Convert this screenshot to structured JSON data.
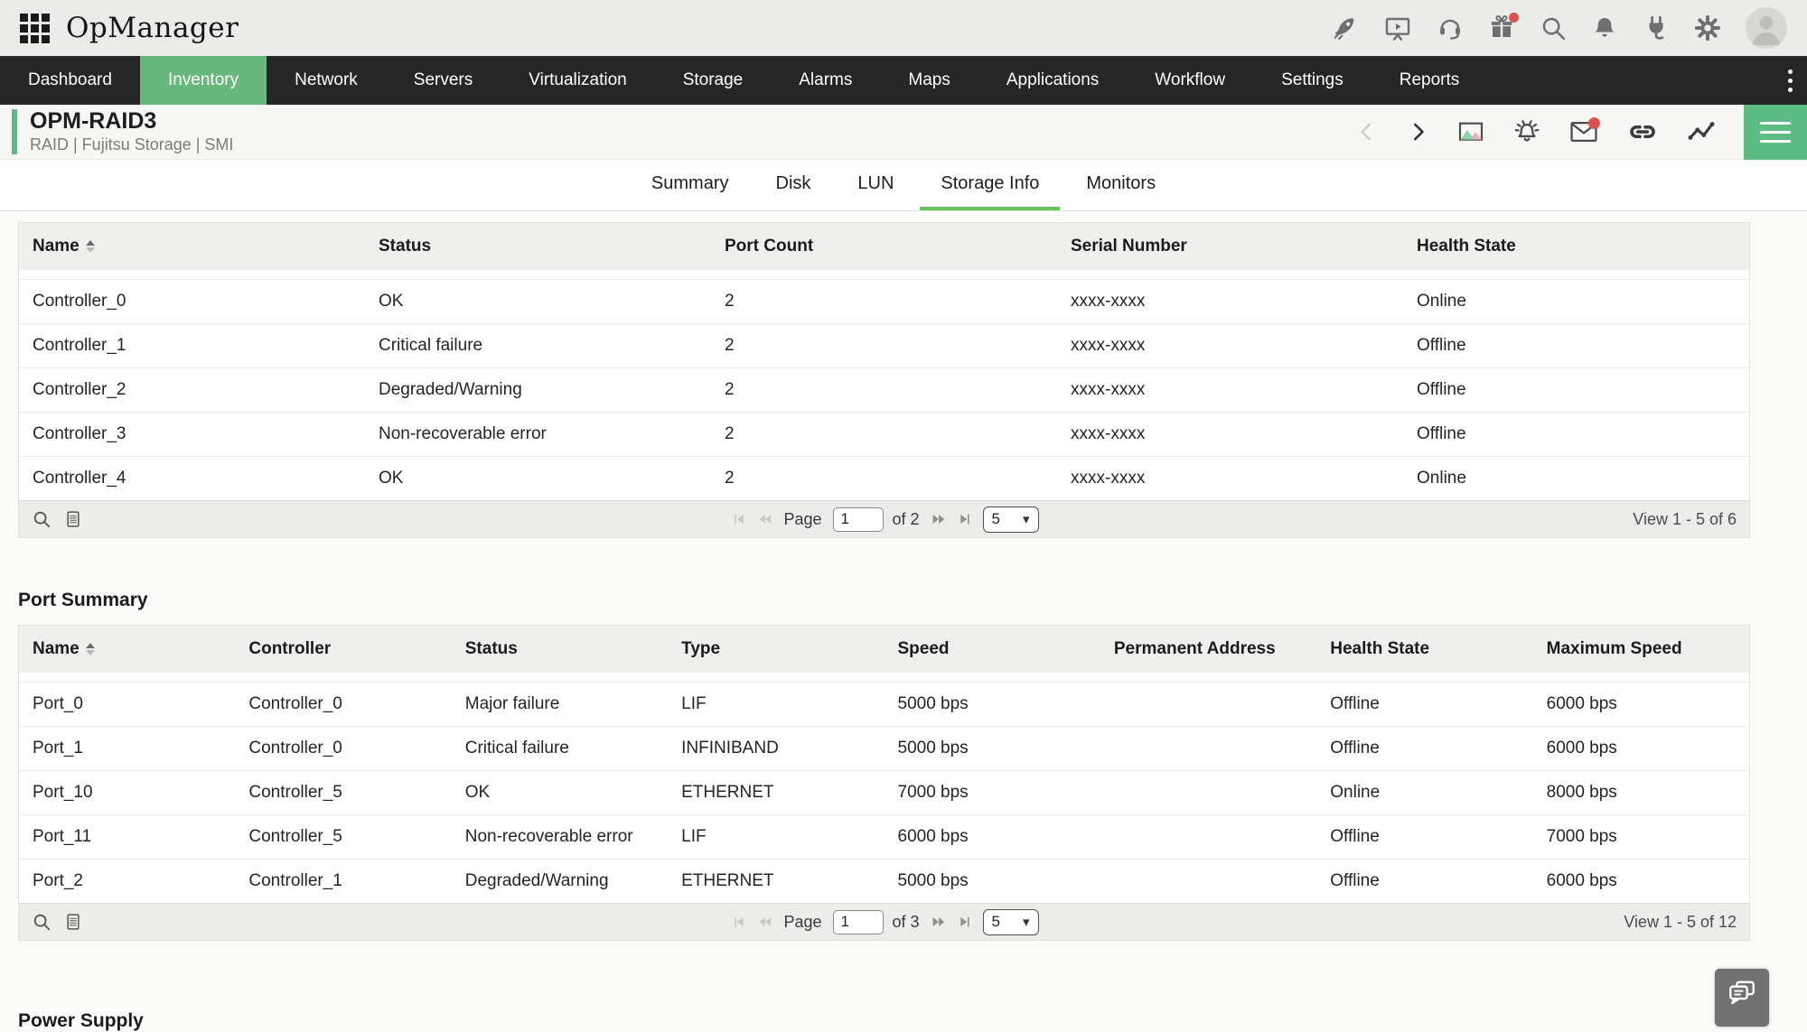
{
  "colors": {
    "accent_green": "#67b77f",
    "tab_underline_green": "#65c15e",
    "nav_bg": "#262626",
    "topbar_bg": "#ebebe9",
    "badge_red": "#d9534f"
  },
  "topbar": {
    "logo_text": "OpManager",
    "icons": [
      "launcher-grid",
      "getting-started-rocket",
      "demo-presentation",
      "support-headset",
      "whats-new-gift",
      "search",
      "notifications-bell",
      "add-on-plug",
      "settings-gear",
      "user-avatar"
    ]
  },
  "nav": {
    "active_label": "Inventory",
    "items": [
      {
        "label": "Dashboard"
      },
      {
        "label": "Inventory"
      },
      {
        "label": "Network"
      },
      {
        "label": "Servers"
      },
      {
        "label": "Virtualization"
      },
      {
        "label": "Storage"
      },
      {
        "label": "Alarms"
      },
      {
        "label": "Maps"
      },
      {
        "label": "Applications"
      },
      {
        "label": "Workflow"
      },
      {
        "label": "Settings"
      },
      {
        "label": "Reports"
      }
    ]
  },
  "device": {
    "title": "OPM-RAID3",
    "subtitle": "RAID | Fujitsu Storage  | SMI",
    "actions": [
      "previous-device",
      "next-device",
      "snapshot-image",
      "alarm-bell",
      "email-envelope",
      "link-chain",
      "performance-graph",
      "menu-hamburger"
    ]
  },
  "tabs": {
    "active": "Storage Info",
    "items": [
      {
        "label": "Summary"
      },
      {
        "label": "Disk"
      },
      {
        "label": "LUN"
      },
      {
        "label": "Storage Info"
      },
      {
        "label": "Monitors"
      }
    ]
  },
  "controller_table": {
    "columns": [
      "Name",
      "Status",
      "Port Count",
      "Serial Number",
      "Health State"
    ],
    "rows": [
      {
        "name": "Controller_0",
        "status": "OK",
        "port_count": "2",
        "serial": "xxxx-xxxx",
        "health": "Online"
      },
      {
        "name": "Controller_1",
        "status": "Critical failure",
        "port_count": "2",
        "serial": "xxxx-xxxx",
        "health": "Offline"
      },
      {
        "name": "Controller_2",
        "status": "Degraded/Warning",
        "port_count": "2",
        "serial": "xxxx-xxxx",
        "health": "Offline"
      },
      {
        "name": "Controller_3",
        "status": "Non-recoverable error",
        "port_count": "2",
        "serial": "xxxx-xxxx",
        "health": "Offline"
      },
      {
        "name": "Controller_4",
        "status": "OK",
        "port_count": "2",
        "serial": "xxxx-xxxx",
        "health": "Online"
      }
    ],
    "pager": {
      "page_label": "Page",
      "page": "1",
      "of": "of 2",
      "page_size": "5",
      "view": "View 1 - 5 of 6"
    }
  },
  "port_table": {
    "heading": "Port Summary",
    "columns": [
      "Name",
      "Controller",
      "Status",
      "Type",
      "Speed",
      "Permanent Address",
      "Health State",
      "Maximum Speed"
    ],
    "rows": [
      {
        "name": "Port_0",
        "controller": "Controller_0",
        "status": "Major failure",
        "type": "LIF",
        "speed": "5000 bps",
        "address": "",
        "health": "Offline",
        "max_speed": "6000 bps"
      },
      {
        "name": "Port_1",
        "controller": "Controller_0",
        "status": "Critical failure",
        "type": "INFINIBAND",
        "speed": "5000 bps",
        "address": "",
        "health": "Offline",
        "max_speed": "6000 bps"
      },
      {
        "name": "Port_10",
        "controller": "Controller_5",
        "status": "OK",
        "type": "ETHERNET",
        "speed": "7000 bps",
        "address": "",
        "health": "Online",
        "max_speed": "8000 bps"
      },
      {
        "name": "Port_11",
        "controller": "Controller_5",
        "status": "Non-recoverable error",
        "type": "LIF",
        "speed": "6000 bps",
        "address": "",
        "health": "Offline",
        "max_speed": "7000 bps"
      },
      {
        "name": "Port_2",
        "controller": "Controller_1",
        "status": "Degraded/Warning",
        "type": "ETHERNET",
        "speed": "5000 bps",
        "address": "",
        "health": "Offline",
        "max_speed": "6000 bps"
      }
    ],
    "pager": {
      "page_label": "Page",
      "page": "1",
      "of": "of 3",
      "page_size": "5",
      "view": "View 1 - 5 of 12"
    }
  },
  "next_section": {
    "heading": "Power Supply"
  }
}
